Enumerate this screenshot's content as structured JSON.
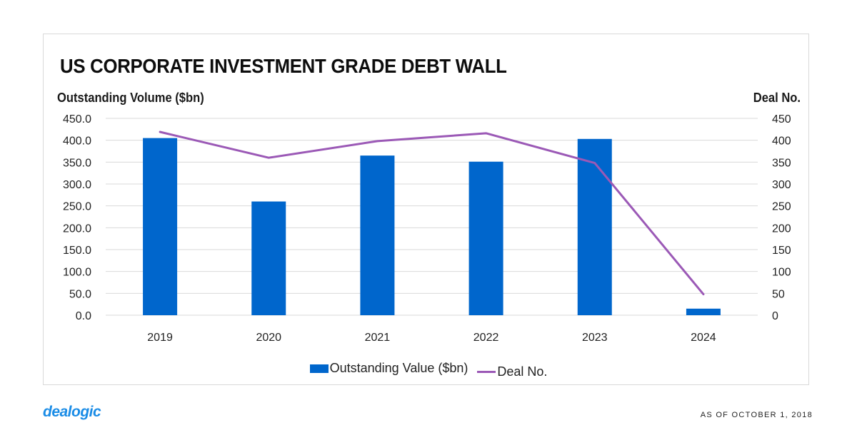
{
  "colors": {
    "bar": "#0066CC",
    "line": "#9B59B6",
    "grid": "#d9d9d9"
  },
  "footer": {
    "logo_text": "dealogic",
    "as_of": "AS OF OCTOBER 1, 2018"
  },
  "chart_data": {
    "type": "bar",
    "title": "US CORPORATE INVESTMENT GRADE DEBT WALL",
    "xlabel": "",
    "ylabel": "Outstanding Volume ($bn)",
    "y2label": "Deal No.",
    "categories": [
      "2019",
      "2020",
      "2021",
      "2022",
      "2023",
      "2024"
    ],
    "ylim": [
      0,
      450
    ],
    "y2lim": [
      0,
      450
    ],
    "yticks": [
      "0.0",
      "50.0",
      "100.0",
      "150.0",
      "200.0",
      "250.0",
      "300.0",
      "350.0",
      "400.0",
      "450.0"
    ],
    "y2ticks": [
      "0",
      "50",
      "100",
      "150",
      "200",
      "250",
      "300",
      "350",
      "400",
      "450"
    ],
    "grid": true,
    "legend_position": "bottom",
    "series": [
      {
        "name": "Outstanding Value ($bn)",
        "type": "bar",
        "axis": "left",
        "values": [
          405,
          260,
          365,
          351,
          403,
          15
        ]
      },
      {
        "name": "Deal No.",
        "type": "line",
        "axis": "right",
        "values": [
          419,
          360,
          398,
          416,
          348,
          48
        ]
      }
    ]
  }
}
